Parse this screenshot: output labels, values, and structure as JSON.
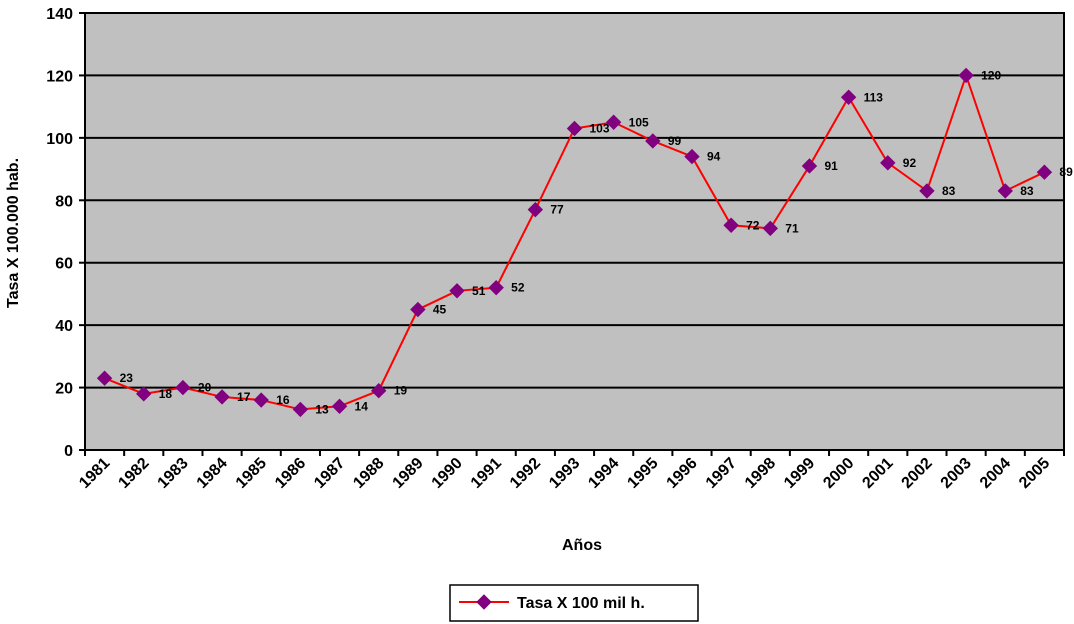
{
  "chart_data": {
    "type": "line",
    "categories": [
      "1981",
      "1982",
      "1983",
      "1984",
      "1985",
      "1986",
      "1987",
      "1988",
      "1989",
      "1990",
      "1991",
      "1992",
      "1993",
      "1994",
      "1995",
      "1996",
      "1997",
      "1998",
      "1999",
      "2000",
      "2001",
      "2002",
      "2003",
      "2004",
      "2005"
    ],
    "series": [
      {
        "name": "Tasa X 100 mil h.",
        "values": [
          23,
          18,
          20,
          17,
          16,
          13,
          14,
          19,
          45,
          51,
          52,
          77,
          103,
          105,
          99,
          94,
          72,
          71,
          91,
          113,
          92,
          83,
          120,
          83,
          89
        ],
        "color": "#ff0000",
        "marker_color": "#800080"
      }
    ],
    "xlabel": "Años",
    "ylabel": "Tasa X 100.000 hab.",
    "ylim": [
      0,
      140
    ],
    "yticks": [
      0,
      20,
      40,
      60,
      80,
      100,
      120,
      140
    ],
    "grid": true,
    "plot_background": "#c0c0c0",
    "legend_position": "bottom-center",
    "data_labels": true
  }
}
